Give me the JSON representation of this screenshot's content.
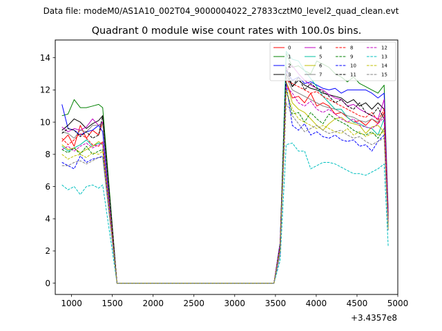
{
  "chart_data": {
    "type": "line",
    "suptitle": "Data file: modeM0/AS1A10_002T04_9000004022_27833cztM0_level2_quad_clean.evt",
    "title": "Quadrant 0 module wise count rates with 100.0s bins.",
    "xlabel": "",
    "ylabel": "",
    "x_offset_label": "+3.4357e8",
    "xlim": [
      800,
      5000
    ],
    "ylim": [
      -0.7,
      15.1
    ],
    "xticks": [
      1000,
      1500,
      2000,
      2500,
      3000,
      3500,
      4000,
      4500,
      5000
    ],
    "yticks": [
      0,
      2,
      4,
      6,
      8,
      10,
      12,
      14
    ],
    "x": [
      882,
      957,
      1032,
      1107,
      1182,
      1257,
      1332,
      1382,
      1557,
      1632,
      1707,
      1782,
      1857,
      1932,
      2007,
      2082,
      2157,
      2232,
      2307,
      2382,
      2457,
      2532,
      2607,
      2682,
      2757,
      2832,
      2907,
      2982,
      3057,
      3132,
      3207,
      3282,
      3357,
      3432,
      3482,
      3557,
      3632,
      3707,
      3782,
      3857,
      3932,
      4007,
      4082,
      4157,
      4232,
      4307,
      4382,
      4457,
      4532,
      4607,
      4682,
      4757,
      4832,
      4882
    ],
    "series": [
      {
        "name": "0",
        "color": "#ff0000",
        "dash": "solid",
        "values": [
          8.8,
          9.2,
          8.5,
          9.8,
          9.0,
          9.5,
          9.2,
          10.0,
          0,
          0,
          0,
          0,
          0,
          0,
          0,
          0,
          0,
          0,
          0,
          0,
          0,
          0,
          0,
          0,
          0,
          0,
          0,
          0,
          0,
          0,
          0,
          0,
          0,
          0,
          0,
          2.3,
          12.5,
          11.5,
          11.6,
          11.2,
          11.8,
          11.0,
          11.2,
          11.0,
          10.5,
          10.6,
          10.3,
          10.0,
          10.1,
          9.8,
          10.2,
          9.9,
          10.6,
          3.8
        ]
      },
      {
        "name": "1",
        "color": "#008000",
        "dash": "solid",
        "values": [
          10.4,
          10.5,
          11.4,
          10.9,
          10.9,
          11.0,
          11.1,
          10.9,
          0,
          0,
          0,
          0,
          0,
          0,
          0,
          0,
          0,
          0,
          0,
          0,
          0,
          0,
          0,
          0,
          0,
          0,
          0,
          0,
          0,
          0,
          0,
          0,
          0,
          0,
          0,
          2.5,
          14.3,
          13.4,
          13.5,
          13.2,
          13.0,
          13.8,
          13.6,
          13.4,
          13.0,
          12.8,
          12.5,
          12.8,
          12.4,
          12.2,
          12.0,
          11.8,
          12.3,
          4.5
        ]
      },
      {
        "name": "2",
        "color": "#0000ff",
        "dash": "solid",
        "values": [
          11.1,
          9.6,
          9.5,
          9.2,
          9.4,
          9.5,
          9.8,
          9.4,
          0,
          0,
          0,
          0,
          0,
          0,
          0,
          0,
          0,
          0,
          0,
          0,
          0,
          0,
          0,
          0,
          0,
          0,
          0,
          0,
          0,
          0,
          0,
          0,
          0,
          0,
          0,
          2.5,
          13.2,
          12.6,
          12.8,
          12.4,
          12.5,
          12.3,
          12.1,
          12.0,
          12.1,
          11.8,
          12.0,
          12.0,
          12.0,
          12.0,
          11.8,
          11.5,
          11.8,
          4.3
        ]
      },
      {
        "name": "3",
        "color": "#000000",
        "dash": "solid",
        "values": [
          9.5,
          9.8,
          10.2,
          10.0,
          9.6,
          9.9,
          10.1,
          10.4,
          0,
          0,
          0,
          0,
          0,
          0,
          0,
          0,
          0,
          0,
          0,
          0,
          0,
          0,
          0,
          0,
          0,
          0,
          0,
          0,
          0,
          0,
          0,
          0,
          0,
          0,
          0,
          2.4,
          13.0,
          12.2,
          12.6,
          12.3,
          12.1,
          12.0,
          11.8,
          11.7,
          11.6,
          11.5,
          11.2,
          11.4,
          11.0,
          11.2,
          10.8,
          11.2,
          10.8,
          4.2
        ]
      },
      {
        "name": "4",
        "color": "#bf00bf",
        "dash": "solid",
        "values": [
          9.7,
          9.4,
          9.6,
          9.5,
          9.7,
          10.2,
          9.8,
          10.0,
          0,
          0,
          0,
          0,
          0,
          0,
          0,
          0,
          0,
          0,
          0,
          0,
          0,
          0,
          0,
          0,
          0,
          0,
          0,
          0,
          0,
          0,
          0,
          0,
          0,
          0,
          0,
          2.4,
          13.2,
          13.5,
          13.0,
          12.6,
          12.3,
          12.1,
          12.0,
          11.7,
          11.5,
          11.4,
          11.0,
          11.1,
          10.8,
          10.6,
          10.4,
          10.2,
          11.4,
          4.4
        ]
      },
      {
        "name": "5",
        "color": "#00bfa0",
        "dash": "solid",
        "values": [
          8.5,
          8.2,
          8.4,
          8.6,
          8.9,
          8.5,
          8.7,
          8.6,
          0,
          0,
          0,
          0,
          0,
          0,
          0,
          0,
          0,
          0,
          0,
          0,
          0,
          0,
          0,
          0,
          0,
          0,
          0,
          0,
          0,
          0,
          0,
          0,
          0,
          0,
          0,
          2.2,
          14.4,
          13.9,
          13.8,
          13.2,
          12.7,
          12.2,
          11.6,
          11.2,
          10.8,
          10.8,
          10.3,
          10.0,
          9.9,
          9.7,
          9.6,
          9.2,
          10.2,
          3.8
        ]
      },
      {
        "name": "6",
        "color": "#bfbf00",
        "dash": "solid",
        "values": [
          8.6,
          8.3,
          8.4,
          8.1,
          8.3,
          8.5,
          8.8,
          8.6,
          0,
          0,
          0,
          0,
          0,
          0,
          0,
          0,
          0,
          0,
          0,
          0,
          0,
          0,
          0,
          0,
          0,
          0,
          0,
          0,
          0,
          0,
          0,
          0,
          0,
          0,
          0,
          2.3,
          12.5,
          11.2,
          10.8,
          10.6,
          10.2,
          9.8,
          9.5,
          9.9,
          10.2,
          10.3,
          10.0,
          9.9,
          9.8,
          9.3,
          9.7,
          9.8,
          9.4,
          3.6
        ]
      },
      {
        "name": "7",
        "color": "#808080",
        "dash": "solid",
        "values": [
          9.4,
          9.3,
          9.0,
          9.5,
          9.4,
          9.8,
          9.8,
          9.9,
          0,
          0,
          0,
          0,
          0,
          0,
          0,
          0,
          0,
          0,
          0,
          0,
          0,
          0,
          0,
          0,
          0,
          0,
          0,
          0,
          0,
          0,
          0,
          0,
          0,
          0,
          0,
          2.3,
          12.8,
          12.0,
          11.8,
          11.6,
          11.4,
          11.2,
          11.0,
          10.9,
          10.8,
          10.6,
          10.4,
          10.3,
          10.1,
          10.0,
          10.2,
          10.0,
          10.5,
          4.0
        ]
      },
      {
        "name": "8",
        "color": "#ff0000",
        "dash": "dashed",
        "values": [
          9.0,
          8.6,
          8.9,
          9.3,
          9.0,
          8.6,
          8.5,
          8.8,
          0,
          0,
          0,
          0,
          0,
          0,
          0,
          0,
          0,
          0,
          0,
          0,
          0,
          0,
          0,
          0,
          0,
          0,
          0,
          0,
          0,
          0,
          0,
          0,
          0,
          0,
          0,
          2.2,
          12.6,
          12.4,
          12.2,
          12.0,
          11.8,
          11.9,
          11.6,
          11.4,
          11.2,
          11.0,
          10.8,
          10.6,
          10.4,
          10.3,
          10.6,
          10.1,
          10.8,
          3.9
        ]
      },
      {
        "name": "9",
        "color": "#008000",
        "dash": "dashed",
        "values": [
          8.3,
          8.1,
          8.4,
          8.0,
          8.5,
          8.0,
          8.2,
          8.3,
          0,
          0,
          0,
          0,
          0,
          0,
          0,
          0,
          0,
          0,
          0,
          0,
          0,
          0,
          0,
          0,
          0,
          0,
          0,
          0,
          0,
          0,
          0,
          0,
          0,
          0,
          0,
          2.2,
          12.0,
          10.5,
          10.6,
          10.0,
          10.6,
          10.2,
          9.9,
          10.5,
          10.2,
          10.0,
          9.8,
          9.5,
          9.3,
          9.2,
          9.4,
          9.0,
          9.6,
          3.5
        ]
      },
      {
        "name": "10",
        "color": "#0000ff",
        "dash": "dashed",
        "values": [
          7.5,
          7.3,
          7.1,
          7.9,
          7.5,
          7.7,
          7.8,
          7.9,
          0,
          0,
          0,
          0,
          0,
          0,
          0,
          0,
          0,
          0,
          0,
          0,
          0,
          0,
          0,
          0,
          0,
          0,
          0,
          0,
          0,
          0,
          0,
          0,
          0,
          0,
          0,
          1.8,
          12.4,
          9.8,
          9.5,
          9.9,
          9.2,
          9.4,
          9.1,
          9.0,
          9.2,
          8.9,
          8.8,
          8.9,
          8.5,
          8.6,
          8.2,
          8.8,
          9.2,
          3.3
        ]
      },
      {
        "name": "11",
        "color": "#000000",
        "dash": "dashed",
        "values": [
          9.3,
          9.6,
          9.5,
          9.1,
          9.4,
          9.0,
          9.2,
          10.4,
          0,
          0,
          0,
          0,
          0,
          0,
          0,
          0,
          0,
          0,
          0,
          0,
          0,
          0,
          0,
          0,
          0,
          0,
          0,
          0,
          0,
          0,
          0,
          0,
          0,
          0,
          0,
          2.4,
          13.4,
          12.2,
          12.8,
          12.0,
          12.4,
          12.1,
          11.9,
          11.6,
          11.2,
          11.4,
          11.0,
          10.8,
          11.2,
          10.6,
          10.4,
          10.9,
          10.2,
          4.0
        ]
      },
      {
        "name": "12",
        "color": "#bf00bf",
        "dash": "dashed",
        "values": [
          8.3,
          8.5,
          8.2,
          8.5,
          8.7,
          8.4,
          8.6,
          8.7,
          0,
          0,
          0,
          0,
          0,
          0,
          0,
          0,
          0,
          0,
          0,
          0,
          0,
          0,
          0,
          0,
          0,
          0,
          0,
          0,
          0,
          0,
          0,
          0,
          0,
          0,
          0,
          2.3,
          12.2,
          11.8,
          11.2,
          11.0,
          11.3,
          10.8,
          10.6,
          10.8,
          10.5,
          10.2,
          10.0,
          10.2,
          9.8,
          9.7,
          9.6,
          9.9,
          10.3,
          3.8
        ]
      },
      {
        "name": "13",
        "color": "#00bfbf",
        "dash": "dashed",
        "values": [
          6.1,
          5.8,
          6.0,
          5.5,
          6.0,
          6.1,
          5.9,
          6.1,
          0,
          0,
          0,
          0,
          0,
          0,
          0,
          0,
          0,
          0,
          0,
          0,
          0,
          0,
          0,
          0,
          0,
          0,
          0,
          0,
          0,
          0,
          0,
          0,
          0,
          0,
          0,
          1.4,
          8.6,
          8.7,
          8.2,
          8.2,
          7.1,
          7.3,
          7.5,
          7.5,
          7.4,
          7.2,
          7.0,
          6.8,
          6.8,
          6.7,
          6.9,
          7.1,
          7.4,
          2.3
        ]
      },
      {
        "name": "14",
        "color": "#bfbf00",
        "dash": "dashed",
        "values": [
          8.0,
          7.7,
          7.9,
          8.0,
          7.8,
          8.1,
          8.0,
          8.2,
          0,
          0,
          0,
          0,
          0,
          0,
          0,
          0,
          0,
          0,
          0,
          0,
          0,
          0,
          0,
          0,
          0,
          0,
          0,
          0,
          0,
          0,
          0,
          0,
          0,
          0,
          0,
          2.1,
          12.0,
          10.8,
          10.2,
          10.0,
          9.8,
          9.6,
          9.8,
          9.6,
          9.4,
          9.3,
          9.6,
          9.2,
          9.4,
          9.1,
          9.3,
          9.2,
          9.4,
          3.4
        ]
      },
      {
        "name": "15",
        "color": "#808080",
        "dash": "dashed",
        "values": [
          7.3,
          7.3,
          7.5,
          7.6,
          7.4,
          7.6,
          7.8,
          7.8,
          0,
          0,
          0,
          0,
          0,
          0,
          0,
          0,
          0,
          0,
          0,
          0,
          0,
          0,
          0,
          0,
          0,
          0,
          0,
          0,
          0,
          0,
          0,
          0,
          0,
          0,
          0,
          1.8,
          11.2,
          10.4,
          9.9,
          9.4,
          9.6,
          9.8,
          9.5,
          9.3,
          9.4,
          9.5,
          9.2,
          9.0,
          9.1,
          8.8,
          8.6,
          8.8,
          9.0,
          3.3
        ]
      }
    ],
    "legend": {
      "location": "upper right",
      "columns": 4
    }
  }
}
